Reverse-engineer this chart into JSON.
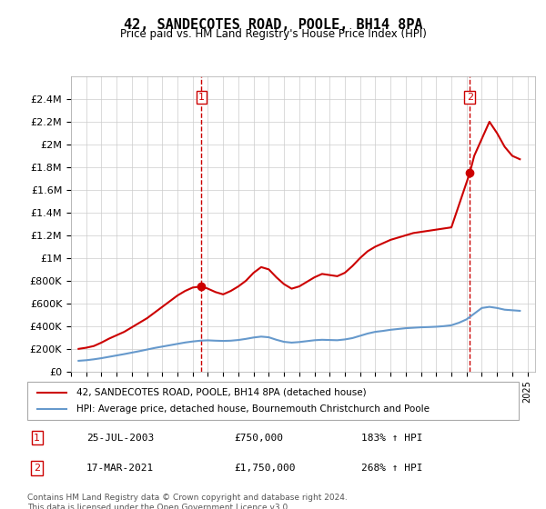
{
  "title": "42, SANDECOTES ROAD, POOLE, BH14 8PA",
  "subtitle": "Price paid vs. HM Land Registry's House Price Index (HPI)",
  "red_line_label": "42, SANDECOTES ROAD, POOLE, BH14 8PA (detached house)",
  "blue_line_label": "HPI: Average price, detached house, Bournemouth Christchurch and Poole",
  "point1_date": "25-JUL-2003",
  "point1_price": 750000,
  "point1_hpi_pct": "183%",
  "point2_date": "17-MAR-2021",
  "point2_price": 1750000,
  "point2_hpi_pct": "268%",
  "footer": "Contains HM Land Registry data © Crown copyright and database right 2024.\nThis data is licensed under the Open Government Licence v3.0.",
  "red_color": "#cc0000",
  "blue_color": "#6699cc",
  "dashed_red": "#cc0000",
  "ylim": [
    0,
    2600000
  ],
  "yticks": [
    0,
    200000,
    400000,
    600000,
    800000,
    1000000,
    1200000,
    1400000,
    1600000,
    1800000,
    2000000,
    2200000,
    2400000
  ],
  "ytick_labels": [
    "£0",
    "£200K",
    "£400K",
    "£600K",
    "£800K",
    "£1M",
    "£1.2M",
    "£1.4M",
    "£1.6M",
    "£1.8M",
    "£2M",
    "£2.2M",
    "£2.4M"
  ],
  "xlim_start": 1995.0,
  "xlim_end": 2025.5,
  "red_x": [
    1995.5,
    1996.0,
    1996.5,
    1997.0,
    1997.5,
    1998.0,
    1998.5,
    1999.0,
    1999.5,
    2000.0,
    2000.5,
    2001.0,
    2001.5,
    2002.0,
    2002.5,
    2003.0,
    2003.58,
    2004.0,
    2004.5,
    2005.0,
    2005.5,
    2006.0,
    2006.5,
    2007.0,
    2007.5,
    2008.0,
    2008.5,
    2009.0,
    2009.5,
    2010.0,
    2010.5,
    2011.0,
    2011.5,
    2012.0,
    2012.5,
    2013.0,
    2013.5,
    2014.0,
    2014.5,
    2015.0,
    2015.5,
    2016.0,
    2016.5,
    2017.0,
    2017.5,
    2018.0,
    2018.5,
    2019.0,
    2019.5,
    2020.0,
    2021.21,
    2021.5,
    2022.0,
    2022.5,
    2023.0,
    2023.5,
    2024.0,
    2024.5
  ],
  "red_y": [
    200000,
    210000,
    225000,
    255000,
    290000,
    320000,
    350000,
    390000,
    430000,
    470000,
    520000,
    570000,
    620000,
    670000,
    710000,
    740000,
    750000,
    730000,
    700000,
    680000,
    710000,
    750000,
    800000,
    870000,
    920000,
    900000,
    830000,
    770000,
    730000,
    750000,
    790000,
    830000,
    860000,
    850000,
    840000,
    870000,
    930000,
    1000000,
    1060000,
    1100000,
    1130000,
    1160000,
    1180000,
    1200000,
    1220000,
    1230000,
    1240000,
    1250000,
    1260000,
    1270000,
    1750000,
    1900000,
    2050000,
    2200000,
    2100000,
    1980000,
    1900000,
    1870000
  ],
  "blue_x": [
    1995.5,
    1996.0,
    1996.5,
    1997.0,
    1997.5,
    1998.0,
    1998.5,
    1999.0,
    1999.5,
    2000.0,
    2000.5,
    2001.0,
    2001.5,
    2002.0,
    2002.5,
    2003.0,
    2003.5,
    2004.0,
    2004.5,
    2005.0,
    2005.5,
    2006.0,
    2006.5,
    2007.0,
    2007.5,
    2008.0,
    2008.5,
    2009.0,
    2009.5,
    2010.0,
    2010.5,
    2011.0,
    2011.5,
    2012.0,
    2012.5,
    2013.0,
    2013.5,
    2014.0,
    2014.5,
    2015.0,
    2015.5,
    2016.0,
    2016.5,
    2017.0,
    2017.5,
    2018.0,
    2018.5,
    2019.0,
    2019.5,
    2020.0,
    2020.5,
    2021.0,
    2021.5,
    2022.0,
    2022.5,
    2023.0,
    2023.5,
    2024.0,
    2024.5
  ],
  "blue_y": [
    95000,
    100000,
    108000,
    118000,
    130000,
    142000,
    154000,
    167000,
    180000,
    194000,
    208000,
    220000,
    232000,
    244000,
    256000,
    265000,
    272000,
    275000,
    272000,
    270000,
    272000,
    278000,
    288000,
    300000,
    308000,
    302000,
    280000,
    262000,
    255000,
    260000,
    268000,
    276000,
    280000,
    278000,
    276000,
    283000,
    295000,
    315000,
    335000,
    350000,
    358000,
    368000,
    375000,
    382000,
    386000,
    390000,
    392000,
    395000,
    400000,
    408000,
    430000,
    460000,
    510000,
    560000,
    570000,
    560000,
    545000,
    540000,
    535000
  ]
}
